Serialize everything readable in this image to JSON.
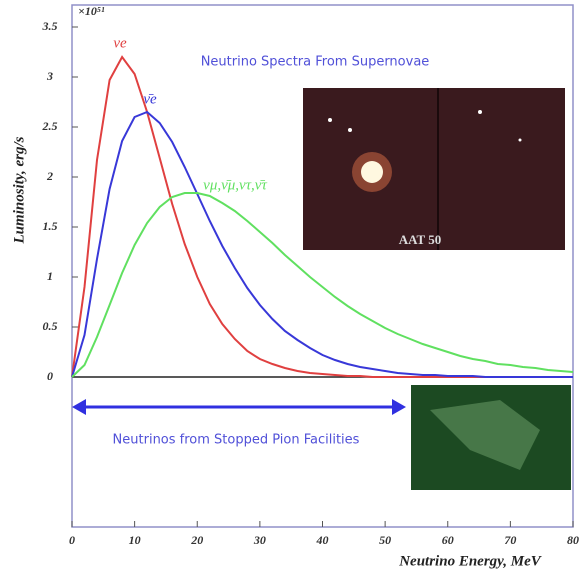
{
  "chart_data": {
    "type": "line",
    "title": "Neutrino Spectra From Supernovae",
    "annotation": "Neutrinos from Stopped Pion Facilities",
    "image_caption": "AAT 50",
    "y_exponent": "×10⁵¹",
    "xlabel": "Neutrino Energy, MeV",
    "ylabel": "Luminosity, erg/s",
    "x": [
      0,
      2,
      4,
      6,
      8,
      10,
      12,
      14,
      16,
      18,
      20,
      22,
      24,
      26,
      28,
      30,
      32,
      34,
      36,
      38,
      40,
      42,
      44,
      46,
      48,
      50,
      52,
      54,
      56,
      58,
      60,
      62,
      64,
      66,
      68,
      70,
      72,
      74,
      76,
      78,
      80
    ],
    "series": [
      {
        "name": "νe",
        "color": "#e04040",
        "values": [
          0,
          0.9,
          2.17,
          2.97,
          3.2,
          3.03,
          2.65,
          2.19,
          1.73,
          1.33,
          1.0,
          0.73,
          0.53,
          0.38,
          0.26,
          0.18,
          0.13,
          0.09,
          0.06,
          0.04,
          0.03,
          0.02,
          0.01,
          0.01,
          0,
          0,
          0,
          0,
          0,
          0,
          0,
          0,
          0,
          0,
          0,
          0,
          0,
          0,
          0,
          0,
          0
        ]
      },
      {
        "name": "ν̄e",
        "color": "#3838d8",
        "values": [
          0,
          0.42,
          1.18,
          1.88,
          2.36,
          2.6,
          2.65,
          2.54,
          2.35,
          2.1,
          1.83,
          1.56,
          1.31,
          1.09,
          0.89,
          0.72,
          0.58,
          0.46,
          0.37,
          0.29,
          0.22,
          0.17,
          0.13,
          0.1,
          0.08,
          0.06,
          0.04,
          0.03,
          0.02,
          0.02,
          0.01,
          0.01,
          0.01,
          0,
          0,
          0,
          0,
          0,
          0,
          0,
          0
        ]
      },
      {
        "name": "νμ,ν̄μ,ντ,ν̄τ",
        "color": "#60e060",
        "values": [
          0,
          0.12,
          0.4,
          0.72,
          1.04,
          1.32,
          1.54,
          1.7,
          1.8,
          1.84,
          1.84,
          1.81,
          1.74,
          1.66,
          1.56,
          1.45,
          1.34,
          1.22,
          1.11,
          1.0,
          0.9,
          0.8,
          0.71,
          0.63,
          0.56,
          0.49,
          0.43,
          0.38,
          0.33,
          0.29,
          0.25,
          0.21,
          0.18,
          0.16,
          0.13,
          0.12,
          0.1,
          0.09,
          0.07,
          0.06,
          0.05
        ]
      }
    ],
    "xlim": [
      0,
      80
    ],
    "xticks": [
      0,
      10,
      20,
      30,
      40,
      50,
      60,
      70,
      80
    ],
    "ylim": [
      -1.5,
      3.72
    ],
    "yticks": [
      0,
      0.5,
      1,
      1.5,
      2,
      2.5,
      3,
      3.5
    ]
  }
}
